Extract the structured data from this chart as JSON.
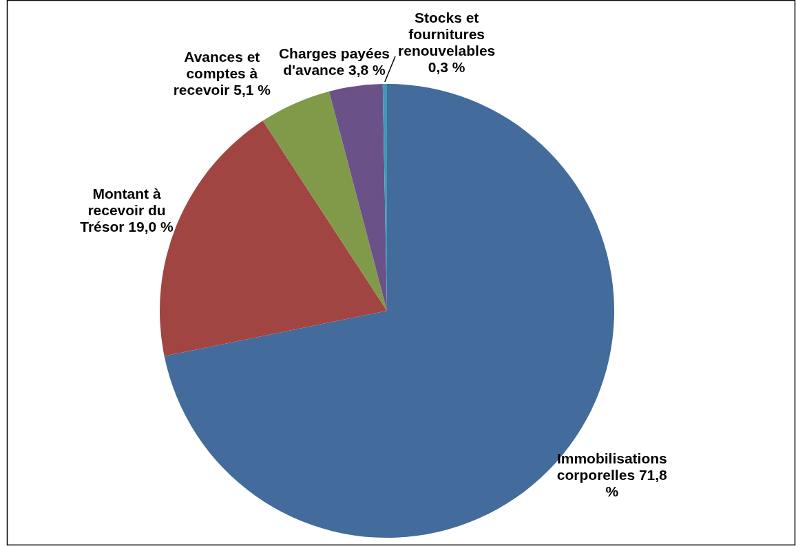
{
  "chart_data": {
    "type": "pie",
    "categories": [
      "Immobilisations corporelles",
      "Montant à recevoir du Trésor",
      "Avances et comptes à recevoir",
      "Charges payées d'avance",
      "Stocks et fournitures renouvelables"
    ],
    "values": [
      71.8,
      19.0,
      5.1,
      3.8,
      0.3
    ],
    "value_labels": [
      "71,8 %",
      "19,0 %",
      "5,1 %",
      "3,8 %",
      "0,3 %"
    ],
    "colors": [
      "#436b9c",
      "#a04542",
      "#819a4a",
      "#6a5187",
      "#3e9bb5"
    ],
    "legend": false
  }
}
